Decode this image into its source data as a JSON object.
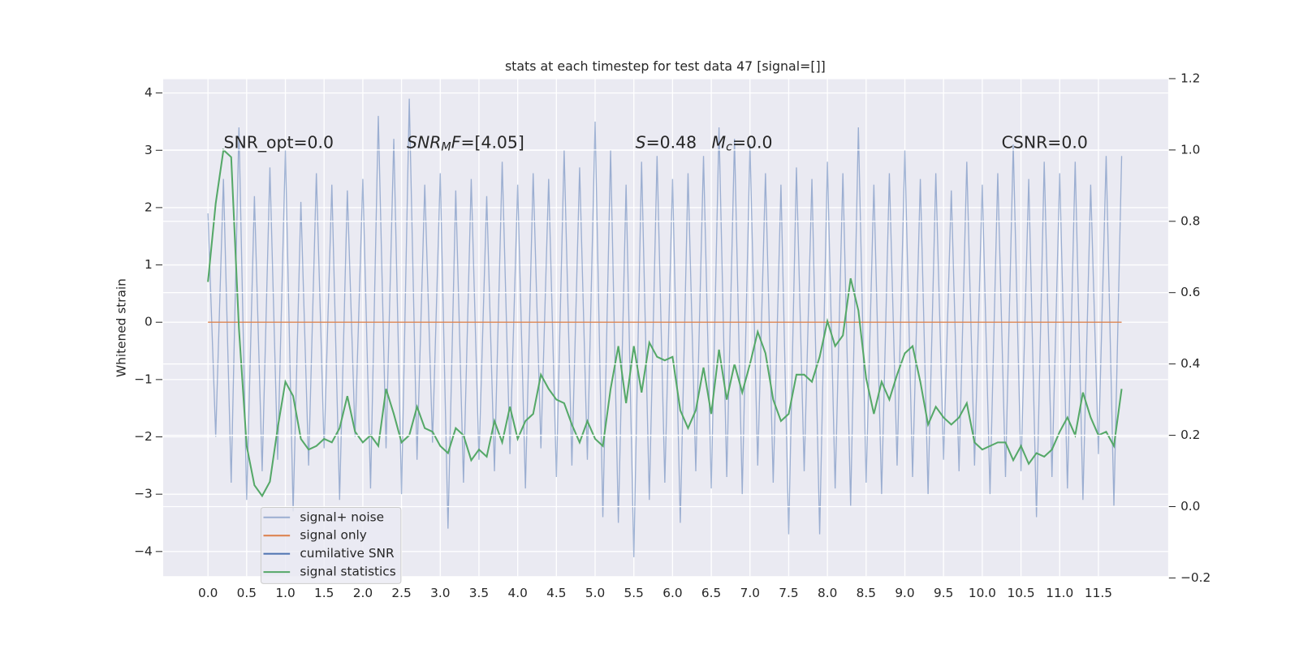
{
  "chart_data": {
    "type": "line",
    "title": "stats at each timestep for test data 47 [signal=[]]",
    "ylabel": "Whitened strain",
    "x": [
      0,
      0.1,
      0.2,
      0.3,
      0.4,
      0.5,
      0.6,
      0.7,
      0.8,
      0.9,
      1,
      1.1,
      1.2,
      1.3,
      1.4,
      1.5,
      1.6,
      1.7,
      1.8,
      1.9,
      2,
      2.1,
      2.2,
      2.3,
      2.4,
      2.5,
      2.6,
      2.7,
      2.8,
      2.9,
      3,
      3.1,
      3.2,
      3.3,
      3.4,
      3.5,
      3.6,
      3.7,
      3.8,
      3.9,
      4,
      4.1,
      4.2,
      4.3,
      4.4,
      4.5,
      4.6,
      4.7,
      4.8,
      4.9,
      5,
      5.1,
      5.2,
      5.3,
      5.4,
      5.5,
      5.6,
      5.7,
      5.8,
      5.9,
      6,
      6.1,
      6.2,
      6.3,
      6.4,
      6.5,
      6.6,
      6.7,
      6.8,
      6.9,
      7,
      7.1,
      7.2,
      7.3,
      7.4,
      7.5,
      7.6,
      7.7,
      7.8,
      7.9,
      8,
      8.1,
      8.2,
      8.3,
      8.4,
      8.5,
      8.6,
      8.7,
      8.8,
      8.9,
      9,
      9.1,
      9.2,
      9.3,
      9.4,
      9.5,
      9.6,
      9.7,
      9.8,
      9.9,
      10,
      10.1,
      10.2,
      10.3,
      10.4,
      10.5,
      10.6,
      10.7,
      10.8,
      10.9,
      11,
      11.1,
      11.2,
      11.3,
      11.4,
      11.5,
      11.6,
      11.7,
      11.8
    ],
    "series": [
      {
        "name": "signal+ noise",
        "color": "#4c72b0",
        "opacity": 0.5,
        "values": [
          1.9,
          -2.0,
          2.5,
          -2.8,
          3.4,
          -3.1,
          2.2,
          -2.6,
          2.7,
          -2.4,
          3.0,
          -3.3,
          2.1,
          -2.5,
          2.6,
          -2.2,
          2.4,
          -3.1,
          2.3,
          -2.0,
          2.5,
          -2.9,
          3.6,
          -2.2,
          3.2,
          -3.0,
          3.9,
          -2.4,
          2.4,
          -2.1,
          2.6,
          -3.6,
          2.3,
          -2.8,
          2.5,
          -2.4,
          2.2,
          -2.6,
          2.8,
          -2.3,
          2.4,
          -2.9,
          2.6,
          -2.2,
          2.5,
          -2.7,
          3.0,
          -2.5,
          2.7,
          -2.4,
          3.5,
          -3.4,
          3.0,
          -3.5,
          2.4,
          -4.1,
          2.8,
          -3.1,
          2.9,
          -2.8,
          2.5,
          -3.5,
          2.6,
          -2.6,
          2.9,
          -2.9,
          3.4,
          -2.7,
          3.2,
          -3.0,
          3.1,
          -2.5,
          2.6,
          -2.8,
          2.4,
          -3.7,
          2.7,
          -2.6,
          2.5,
          -3.7,
          2.8,
          -2.9,
          2.6,
          -3.2,
          3.4,
          -2.8,
          2.4,
          -3.0,
          2.6,
          -2.5,
          3.0,
          -2.7,
          2.5,
          -3.0,
          2.6,
          -2.4,
          2.3,
          -2.6,
          2.8,
          -2.5,
          2.4,
          -3.0,
          2.6,
          -2.7,
          3.1,
          -2.6,
          2.5,
          -3.4,
          2.8,
          -2.7,
          2.6,
          -2.9,
          2.8,
          -3.1,
          2.4,
          -2.3,
          2.9,
          -3.2,
          2.9
        ]
      },
      {
        "name": "signal only",
        "color": "#dd8452",
        "x": [
          0,
          11.8
        ],
        "values": [
          0,
          0
        ]
      },
      {
        "name": "cumilative SNR",
        "color": "#4c72b0"
      },
      {
        "name": "signal statistics",
        "color": "#55a868",
        "axis": "y2",
        "values": [
          0.63,
          0.85,
          1.0,
          0.98,
          0.5,
          0.17,
          0.06,
          0.03,
          0.07,
          0.22,
          0.35,
          0.31,
          0.19,
          0.16,
          0.17,
          0.19,
          0.18,
          0.22,
          0.31,
          0.21,
          0.18,
          0.2,
          0.17,
          0.33,
          0.26,
          0.18,
          0.2,
          0.28,
          0.22,
          0.21,
          0.17,
          0.15,
          0.22,
          0.2,
          0.13,
          0.16,
          0.14,
          0.24,
          0.18,
          0.28,
          0.19,
          0.24,
          0.26,
          0.37,
          0.33,
          0.3,
          0.29,
          0.23,
          0.18,
          0.24,
          0.19,
          0.17,
          0.33,
          0.45,
          0.29,
          0.45,
          0.32,
          0.46,
          0.42,
          0.41,
          0.42,
          0.27,
          0.22,
          0.27,
          0.39,
          0.26,
          0.44,
          0.3,
          0.4,
          0.32,
          0.4,
          0.49,
          0.43,
          0.3,
          0.24,
          0.26,
          0.37,
          0.37,
          0.35,
          0.42,
          0.52,
          0.45,
          0.48,
          0.64,
          0.55,
          0.36,
          0.26,
          0.35,
          0.3,
          0.37,
          0.43,
          0.45,
          0.35,
          0.23,
          0.28,
          0.25,
          0.23,
          0.25,
          0.29,
          0.18,
          0.16,
          0.17,
          0.18,
          0.18,
          0.13,
          0.17,
          0.12,
          0.15,
          0.14,
          0.16,
          0.21,
          0.25,
          0.2,
          0.32,
          0.25,
          0.2,
          0.21,
          0.17,
          0.33
        ]
      }
    ],
    "xlim": [
      -0.578,
      12.4
    ],
    "xticks": [
      {
        "value": 0,
        "label": "0.0"
      },
      0.5,
      {
        "value": 1,
        "label": "1.0"
      },
      1.5,
      {
        "value": 2,
        "label": "2.0"
      },
      2.5,
      {
        "value": 3,
        "label": "3.0"
      },
      3.5,
      {
        "value": 4,
        "label": "4.0"
      },
      4.5,
      {
        "value": 5,
        "label": "5.0"
      },
      5.5,
      {
        "value": 6,
        "label": "6.0"
      },
      6.5,
      {
        "value": 7,
        "label": "7.0"
      },
      7.5,
      {
        "value": 8,
        "label": "8.0"
      },
      8.5,
      {
        "value": 9,
        "label": "9.0"
      },
      9.5,
      {
        "value": 10,
        "label": "10.0"
      },
      10.5,
      {
        "value": 11,
        "label": "11.0"
      },
      11.5
    ],
    "ylim": [
      -4.43,
      4.25
    ],
    "yticks": [
      {
        "value": -4,
        "label": "−4"
      },
      {
        "value": -3,
        "label": "−3"
      },
      {
        "value": -2,
        "label": "−2"
      },
      {
        "value": -1,
        "label": "−1"
      },
      0,
      1,
      2,
      3,
      4
    ],
    "y2lim": [
      -0.195,
      1.2
    ],
    "y2ticks": [
      {
        "value": -0.2,
        "label": "−0.2"
      },
      {
        "value": 0,
        "label": "0.0"
      },
      0.2,
      0.4,
      0.6,
      0.8,
      {
        "value": 1,
        "label": "1.0"
      },
      1.2
    ],
    "grid": true,
    "legend": "lower left",
    "annotations": [
      {
        "parts": [
          {
            "text": "SNR_opt=0.0",
            "style": "normal"
          }
        ]
      },
      {
        "parts": [
          {
            "text": "SNR",
            "style": "italic"
          },
          {
            "text": "M",
            "style": "sub"
          },
          {
            "text": "F",
            "style": "italic"
          },
          {
            "text": "=[4.05]",
            "style": "normal"
          }
        ]
      },
      {
        "parts": [
          {
            "text": "S",
            "style": "italic"
          },
          {
            "text": "=0.48",
            "style": "normal"
          }
        ]
      },
      {
        "parts": [
          {
            "text": "M",
            "style": "italic"
          },
          {
            "text": "c",
            "style": "sub"
          },
          {
            "text": "=0.0",
            "style": "normal"
          }
        ]
      },
      {
        "parts": [
          {
            "text": "CSNR=0.0",
            "style": "normal"
          }
        ]
      }
    ]
  }
}
